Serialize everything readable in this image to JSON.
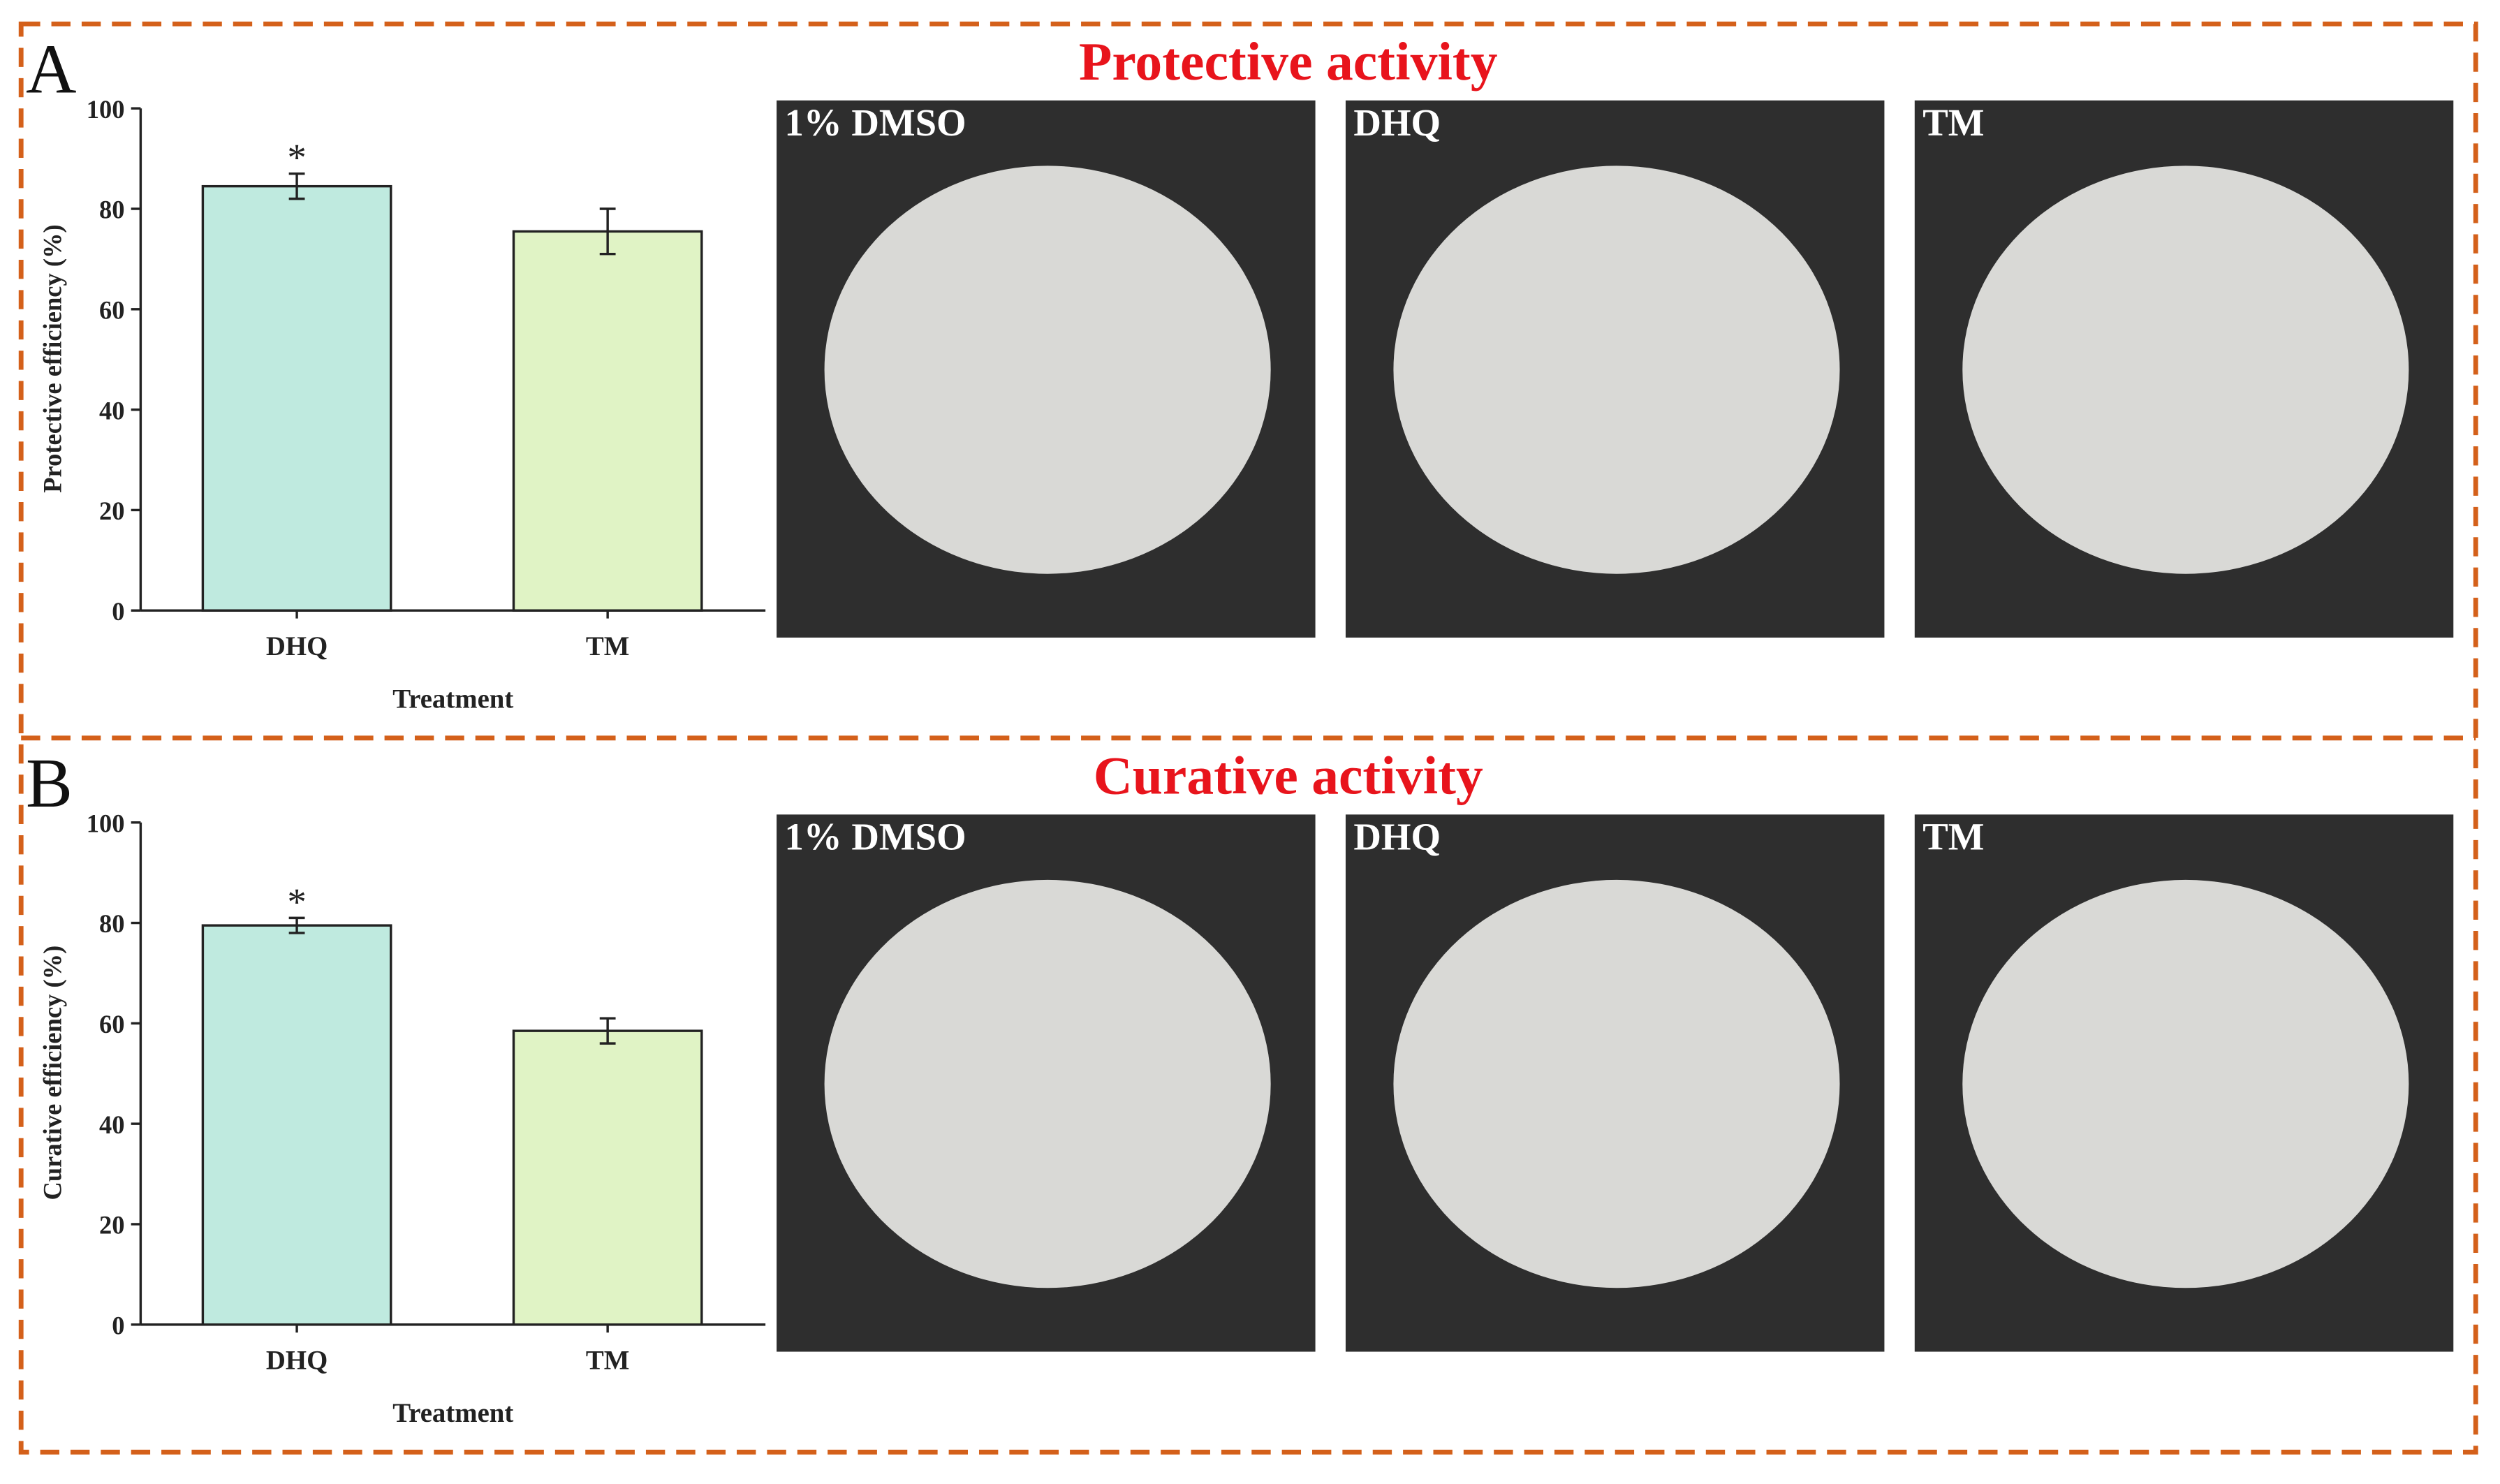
{
  "chart_data": [
    {
      "type": "bar",
      "panel_label": "A",
      "title": "Protective activity",
      "ylabel": "Protective efficiency (%)",
      "xlabel": "Treatment",
      "categories": [
        "DHQ",
        "TM"
      ],
      "values": [
        84.5,
        75.5
      ],
      "errors": [
        2.5,
        4.5
      ],
      "significance": [
        "*",
        null
      ],
      "colors": [
        "#bfeadf",
        "#e0f3c5"
      ],
      "ylim": [
        0,
        100
      ],
      "yticks": [
        0,
        20,
        40,
        60,
        80,
        100
      ],
      "photo_labels": [
        "1% DMSO",
        "DHQ",
        "TM"
      ]
    },
    {
      "type": "bar",
      "panel_label": "B",
      "title": "Curative activity",
      "ylabel": "Curative efficiency (%)",
      "xlabel": "Treatment",
      "categories": [
        "DHQ",
        "TM"
      ],
      "values": [
        79.5,
        58.5
      ],
      "errors": [
        1.5,
        2.5
      ],
      "significance": [
        "*",
        null
      ],
      "colors": [
        "#bfeadf",
        "#e0f3c5"
      ],
      "ylim": [
        0,
        100
      ],
      "yticks": [
        0,
        20,
        40,
        60,
        80,
        100
      ],
      "photo_labels": [
        "1% DMSO",
        "DHQ",
        "TM"
      ]
    }
  ]
}
